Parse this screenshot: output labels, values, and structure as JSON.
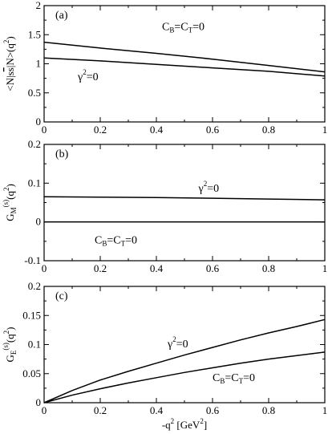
{
  "chart_data": [
    {
      "type": "line",
      "panel_label": "(a)",
      "ylabel_parts": [
        "<N|",
        "s",
        "s",
        "|N>(q",
        "2",
        ")"
      ],
      "xlim": [
        0,
        1
      ],
      "ylim": [
        0,
        2
      ],
      "xticks": [
        "0",
        "0.2",
        "0.4",
        "0.6",
        "0.8",
        "1"
      ],
      "yticks": [
        {
          "v": 0,
          "t": "0"
        },
        {
          "v": 0.5,
          "t": "0.5"
        },
        {
          "v": 1,
          "t": "1"
        },
        {
          "v": 1.5,
          "t": "1.5"
        },
        {
          "v": 2,
          "t": "2"
        }
      ],
      "series": [
        {
          "x": [
            0,
            0.2,
            0.4,
            0.6,
            0.8,
            1.0
          ],
          "values": [
            1.37,
            1.27,
            1.18,
            1.08,
            0.97,
            0.86
          ]
        },
        {
          "x": [
            0,
            0.2,
            0.4,
            0.6,
            0.8,
            1.0
          ],
          "values": [
            1.1,
            1.05,
            0.99,
            0.93,
            0.87,
            0.79
          ]
        }
      ],
      "annotations": [
        {
          "main": "C",
          "sub": "B",
          "mid": "=C",
          "sub2": "T",
          "tail": "=0",
          "ax": 0.42,
          "ay": 1.58
        },
        {
          "main": "γ",
          "sup": "2",
          "tail": "=0",
          "ax": 0.12,
          "ay": 0.72
        }
      ]
    },
    {
      "type": "line",
      "panel_label": "(b)",
      "ylabel_parts": [
        "G",
        "M",
        "(s)",
        "(q",
        "2",
        ")"
      ],
      "xlim": [
        0,
        1
      ],
      "ylim": [
        -0.1,
        0.2
      ],
      "xticks": [
        "0",
        "0.2",
        "0.4",
        "0.6",
        "0.8",
        "1"
      ],
      "yticks": [
        {
          "v": -0.1,
          "t": "-0.1"
        },
        {
          "v": 0,
          "t": "0"
        },
        {
          "v": 0.1,
          "t": "0.1"
        },
        {
          "v": 0.2,
          "t": "0.2"
        }
      ],
      "series": [
        {
          "x": [
            0,
            0.2,
            0.4,
            0.6,
            0.8,
            1.0
          ],
          "values": [
            0.065,
            0.064,
            0.063,
            0.061,
            0.059,
            0.057
          ]
        },
        {
          "x": [
            0,
            1.0
          ],
          "values": [
            0,
            0
          ]
        }
      ],
      "annotations": [
        {
          "main": "γ",
          "sup": "2",
          "tail": "=0",
          "ax": 0.55,
          "ay": 0.078
        },
        {
          "main": "C",
          "sub": "B",
          "mid": "=C",
          "sub2": "T",
          "tail": "=0",
          "ax": 0.18,
          "ay": -0.055
        }
      ]
    },
    {
      "type": "line",
      "panel_label": "(c)",
      "ylabel_parts": [
        "G",
        "E",
        "(s)",
        "(q",
        "2",
        ")"
      ],
      "xlabel_parts": [
        "-q",
        "2",
        " [GeV",
        "2",
        "]"
      ],
      "xlim": [
        0,
        1
      ],
      "ylim": [
        0,
        0.2
      ],
      "xticks": [
        "0",
        "0.2",
        "0.4",
        "0.6",
        "0.8",
        "1"
      ],
      "yticks": [
        {
          "v": 0,
          "t": "0"
        },
        {
          "v": 0.05,
          "t": "0.05"
        },
        {
          "v": 0.1,
          "t": "0.1"
        },
        {
          "v": 0.15,
          "t": "0.15"
        },
        {
          "v": 0.2,
          "t": "0.2"
        }
      ],
      "series": [
        {
          "x": [
            0,
            0.1,
            0.2,
            0.3,
            0.4,
            0.5,
            0.6,
            0.7,
            0.8,
            0.9,
            1.0
          ],
          "values": [
            0,
            0.021,
            0.039,
            0.054,
            0.068,
            0.082,
            0.095,
            0.108,
            0.12,
            0.131,
            0.143
          ]
        },
        {
          "x": [
            0,
            0.1,
            0.2,
            0.3,
            0.4,
            0.5,
            0.6,
            0.7,
            0.8,
            0.9,
            1.0
          ],
          "values": [
            0,
            0.013,
            0.024,
            0.034,
            0.043,
            0.052,
            0.06,
            0.068,
            0.075,
            0.081,
            0.087
          ]
        }
      ],
      "annotations": [
        {
          "main": "γ",
          "sup": "2",
          "tail": "=0",
          "ax": 0.44,
          "ay": 0.095
        },
        {
          "main": "C",
          "sub": "B",
          "mid": "=C",
          "sub2": "T",
          "tail": "=0",
          "ax": 0.6,
          "ay": 0.037
        }
      ]
    }
  ]
}
